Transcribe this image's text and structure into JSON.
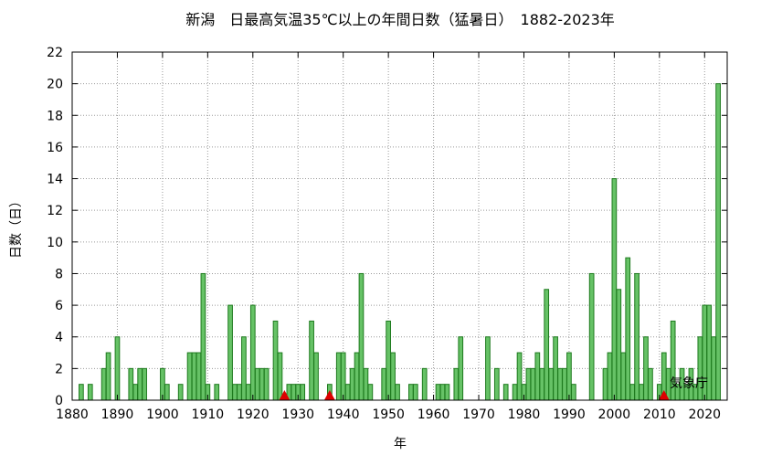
{
  "chart_data": {
    "type": "bar",
    "title": "新潟　日最高気温35℃以上の年間日数（猛暑日）　1882-2023年",
    "xlabel": "年",
    "ylabel": "日数（日）",
    "xlim": [
      1880,
      2025
    ],
    "ylim": [
      0,
      22
    ],
    "xticks": [
      1880,
      1890,
      1900,
      1910,
      1920,
      1930,
      1940,
      1950,
      1960,
      1970,
      1980,
      1990,
      2000,
      2010,
      2020
    ],
    "yticks": [
      0,
      2,
      4,
      6,
      8,
      10,
      12,
      14,
      16,
      18,
      20,
      22
    ],
    "bar_color": "#66c266",
    "bar_edge_color": "#1e7a1e",
    "marker_color": "#dd0000",
    "grid": true,
    "legend": "none",
    "source_label": "気象庁",
    "station_relocation_years": [
      1927,
      1937,
      2011
    ],
    "years": [
      1882,
      1883,
      1884,
      1885,
      1886,
      1887,
      1888,
      1889,
      1890,
      1891,
      1892,
      1893,
      1894,
      1895,
      1896,
      1897,
      1898,
      1899,
      1900,
      1901,
      1902,
      1903,
      1904,
      1905,
      1906,
      1907,
      1908,
      1909,
      1910,
      1911,
      1912,
      1913,
      1914,
      1915,
      1916,
      1917,
      1918,
      1919,
      1920,
      1921,
      1922,
      1923,
      1924,
      1925,
      1926,
      1927,
      1928,
      1929,
      1930,
      1931,
      1932,
      1933,
      1934,
      1935,
      1936,
      1937,
      1938,
      1939,
      1940,
      1941,
      1942,
      1943,
      1944,
      1945,
      1946,
      1947,
      1948,
      1949,
      1950,
      1951,
      1952,
      1953,
      1954,
      1955,
      1956,
      1957,
      1958,
      1959,
      1960,
      1961,
      1962,
      1963,
      1964,
      1965,
      1966,
      1967,
      1968,
      1969,
      1970,
      1971,
      1972,
      1973,
      1974,
      1975,
      1976,
      1977,
      1978,
      1979,
      1980,
      1981,
      1982,
      1983,
      1984,
      1985,
      1986,
      1987,
      1988,
      1989,
      1990,
      1991,
      1992,
      1993,
      1994,
      1995,
      1996,
      1997,
      1998,
      1999,
      2000,
      2001,
      2002,
      2003,
      2004,
      2005,
      2006,
      2007,
      2008,
      2009,
      2010,
      2011,
      2012,
      2013,
      2014,
      2015,
      2016,
      2017,
      2018,
      2019,
      2020,
      2021,
      2022,
      2023
    ],
    "values": [
      1,
      0,
      1,
      0,
      0,
      2,
      3,
      0,
      4,
      0,
      0,
      2,
      1,
      2,
      2,
      0,
      0,
      0,
      2,
      1,
      0,
      0,
      1,
      0,
      3,
      3,
      3,
      8,
      1,
      0,
      1,
      0,
      0,
      6,
      1,
      1,
      4,
      1,
      6,
      2,
      2,
      2,
      0,
      5,
      3,
      0,
      1,
      1,
      1,
      1,
      0,
      5,
      3,
      0,
      0,
      1,
      0,
      3,
      3,
      1,
      2,
      3,
      8,
      2,
      1,
      0,
      0,
      2,
      5,
      3,
      1,
      0,
      0,
      1,
      1,
      0,
      2,
      0,
      0,
      1,
      1,
      1,
      0,
      2,
      4,
      0,
      0,
      0,
      0,
      0,
      4,
      0,
      2,
      0,
      1,
      0,
      1,
      3,
      1,
      2,
      2,
      3,
      2,
      7,
      2,
      4,
      2,
      2,
      3,
      1,
      0,
      0,
      0,
      8,
      0,
      0,
      2,
      3,
      14,
      7,
      3,
      9,
      1,
      8,
      1,
      4,
      2,
      0,
      1,
      3,
      2,
      5,
      1,
      2,
      1,
      2,
      1,
      4,
      6,
      6,
      4,
      20
    ]
  }
}
